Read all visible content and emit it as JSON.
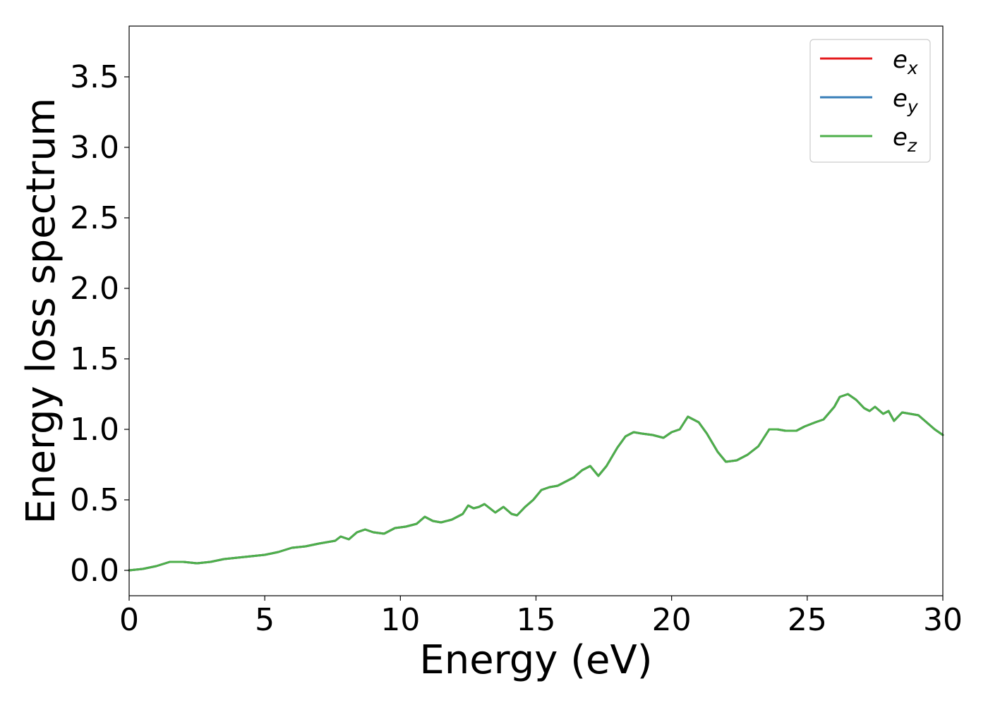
{
  "chart_data": {
    "type": "line",
    "xlabel": "Energy (eV)",
    "ylabel": "Energy loss spectrum",
    "xlim": [
      0,
      30
    ],
    "ylim": [
      -0.18,
      3.86
    ],
    "xticks": [
      0,
      5,
      10,
      15,
      20,
      25,
      30
    ],
    "xtick_labels": [
      "0",
      "5",
      "10",
      "15",
      "20",
      "25",
      "30"
    ],
    "yticks": [
      0.0,
      0.5,
      1.0,
      1.5,
      2.0,
      2.5,
      3.0,
      3.5
    ],
    "ytick_labels": [
      "0.0",
      "0.5",
      "1.0",
      "1.5",
      "2.0",
      "2.5",
      "3.0",
      "3.5"
    ],
    "grid": false,
    "legend_position": "top-right",
    "x": [
      0,
      0.5,
      1.0,
      1.5,
      2.0,
      2.5,
      3.0,
      3.5,
      4.0,
      4.5,
      5.0,
      5.5,
      6.0,
      6.5,
      7.0,
      7.3,
      7.6,
      7.8,
      8.1,
      8.4,
      8.7,
      9.0,
      9.4,
      9.8,
      10.2,
      10.6,
      10.9,
      11.2,
      11.5,
      11.9,
      12.3,
      12.5,
      12.7,
      12.9,
      13.1,
      13.3,
      13.5,
      13.8,
      14.1,
      14.3,
      14.6,
      14.9,
      15.2,
      15.5,
      15.8,
      16.1,
      16.4,
      16.7,
      17.0,
      17.3,
      17.6,
      18.0,
      18.3,
      18.6,
      18.9,
      19.3,
      19.7,
      20.0,
      20.3,
      20.6,
      21.0,
      21.3,
      21.7,
      22.0,
      22.4,
      22.8,
      23.2,
      23.6,
      23.9,
      24.2,
      24.6,
      24.9,
      25.3,
      25.6,
      26.0,
      26.2,
      26.5,
      26.8,
      27.1,
      27.3,
      27.5,
      27.8,
      28.0,
      28.2,
      28.5,
      28.8,
      29.1,
      29.4,
      29.7,
      30.0
    ],
    "series": [
      {
        "name": "e_x",
        "color": "#e41a1c",
        "values": [
          0.0,
          0.01,
          0.03,
          0.06,
          0.06,
          0.05,
          0.06,
          0.08,
          0.09,
          0.1,
          0.11,
          0.13,
          0.16,
          0.17,
          0.19,
          0.2,
          0.21,
          0.24,
          0.22,
          0.27,
          0.29,
          0.27,
          0.26,
          0.3,
          0.31,
          0.33,
          0.38,
          0.35,
          0.34,
          0.36,
          0.4,
          0.46,
          0.44,
          0.45,
          0.47,
          0.44,
          0.41,
          0.45,
          0.4,
          0.39,
          0.45,
          0.5,
          0.57,
          0.59,
          0.6,
          0.63,
          0.66,
          0.71,
          0.74,
          0.67,
          0.74,
          0.87,
          0.95,
          0.98,
          0.97,
          0.96,
          0.94,
          0.98,
          1.0,
          1.09,
          1.05,
          0.97,
          0.84,
          0.77,
          0.78,
          0.82,
          0.88,
          1.0,
          1.0,
          0.99,
          0.99,
          1.02,
          1.05,
          1.07,
          1.16,
          1.23,
          1.25,
          1.21,
          1.15,
          1.13,
          1.16,
          1.11,
          1.13,
          1.06,
          1.12,
          1.11,
          1.1,
          1.05,
          1.0,
          0.96
        ]
      },
      {
        "name": "e_y",
        "color": "#377eb8",
        "values": [
          0.0,
          0.01,
          0.03,
          0.06,
          0.06,
          0.05,
          0.06,
          0.08,
          0.09,
          0.1,
          0.11,
          0.13,
          0.16,
          0.17,
          0.19,
          0.2,
          0.21,
          0.24,
          0.22,
          0.27,
          0.29,
          0.27,
          0.26,
          0.3,
          0.31,
          0.33,
          0.38,
          0.35,
          0.34,
          0.36,
          0.4,
          0.46,
          0.44,
          0.45,
          0.47,
          0.44,
          0.41,
          0.45,
          0.4,
          0.39,
          0.45,
          0.5,
          0.57,
          0.59,
          0.6,
          0.63,
          0.66,
          0.71,
          0.74,
          0.67,
          0.74,
          0.87,
          0.95,
          0.98,
          0.97,
          0.96,
          0.94,
          0.98,
          1.0,
          1.09,
          1.05,
          0.97,
          0.84,
          0.77,
          0.78,
          0.82,
          0.88,
          1.0,
          1.0,
          0.99,
          0.99,
          1.02,
          1.05,
          1.07,
          1.16,
          1.23,
          1.25,
          1.21,
          1.15,
          1.13,
          1.16,
          1.11,
          1.13,
          1.06,
          1.12,
          1.11,
          1.1,
          1.05,
          1.0,
          0.96
        ]
      },
      {
        "name": "e_z",
        "color": "#4daf4a",
        "values": [
          0.0,
          0.01,
          0.03,
          0.06,
          0.06,
          0.05,
          0.06,
          0.08,
          0.09,
          0.1,
          0.11,
          0.13,
          0.16,
          0.17,
          0.19,
          0.2,
          0.21,
          0.24,
          0.22,
          0.27,
          0.29,
          0.27,
          0.26,
          0.3,
          0.31,
          0.33,
          0.38,
          0.35,
          0.34,
          0.36,
          0.4,
          0.46,
          0.44,
          0.45,
          0.47,
          0.44,
          0.41,
          0.45,
          0.4,
          0.39,
          0.45,
          0.5,
          0.57,
          0.59,
          0.6,
          0.63,
          0.66,
          0.71,
          0.74,
          0.67,
          0.74,
          0.87,
          0.95,
          0.98,
          0.97,
          0.96,
          0.94,
          0.98,
          1.0,
          1.09,
          1.05,
          0.97,
          0.84,
          0.77,
          0.78,
          0.82,
          0.88,
          1.0,
          1.0,
          0.99,
          0.99,
          1.02,
          1.05,
          1.07,
          1.16,
          1.23,
          1.25,
          1.21,
          1.15,
          1.13,
          1.16,
          1.11,
          1.13,
          1.06,
          1.12,
          1.11,
          1.1,
          1.05,
          1.0,
          0.96
        ]
      }
    ],
    "legend": [
      {
        "base": "e",
        "sub": "x",
        "color": "#e41a1c"
      },
      {
        "base": "e",
        "sub": "y",
        "color": "#377eb8"
      },
      {
        "base": "e",
        "sub": "z",
        "color": "#4daf4a"
      }
    ]
  }
}
